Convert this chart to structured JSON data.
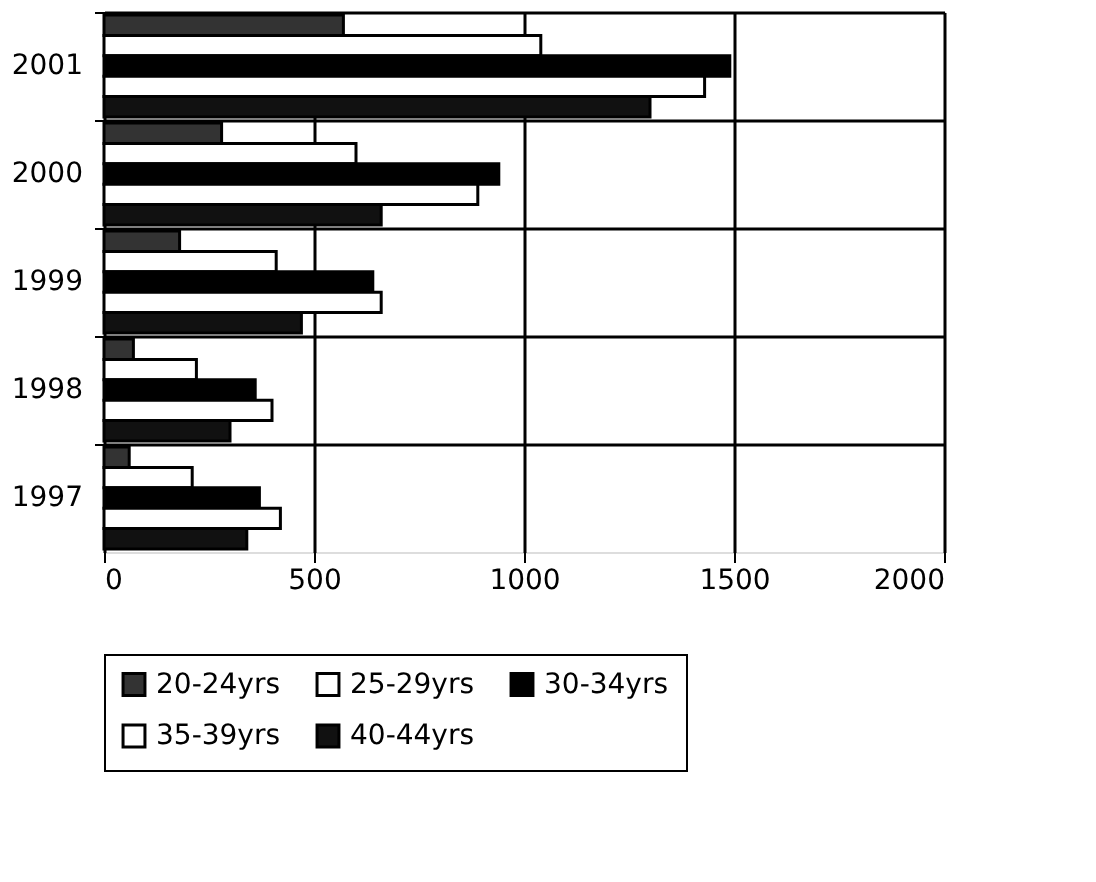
{
  "chart_data": {
    "type": "bar",
    "orientation": "horizontal",
    "categories": [
      "2001",
      "2000",
      "1999",
      "1998",
      "1997"
    ],
    "series": [
      {
        "name": "20-24yrs",
        "color": "#333333",
        "values": [
          570,
          280,
          180,
          70,
          60
        ]
      },
      {
        "name": "25-29yrs",
        "color": "#ffffff",
        "values": [
          1040,
          600,
          410,
          220,
          210
        ]
      },
      {
        "name": "30-34yrs",
        "color": "#000000",
        "values": [
          1490,
          940,
          640,
          360,
          370
        ]
      },
      {
        "name": "35-39yrs",
        "color": "#ffffff",
        "values": [
          1430,
          890,
          660,
          400,
          420
        ]
      },
      {
        "name": "40-44yrs",
        "color": "#111111",
        "values": [
          1300,
          660,
          470,
          300,
          340
        ]
      }
    ],
    "xlim": [
      0,
      2000
    ],
    "xticks": [
      0,
      500,
      1000,
      1500,
      2000
    ],
    "grid": true,
    "legend": "bottom"
  }
}
